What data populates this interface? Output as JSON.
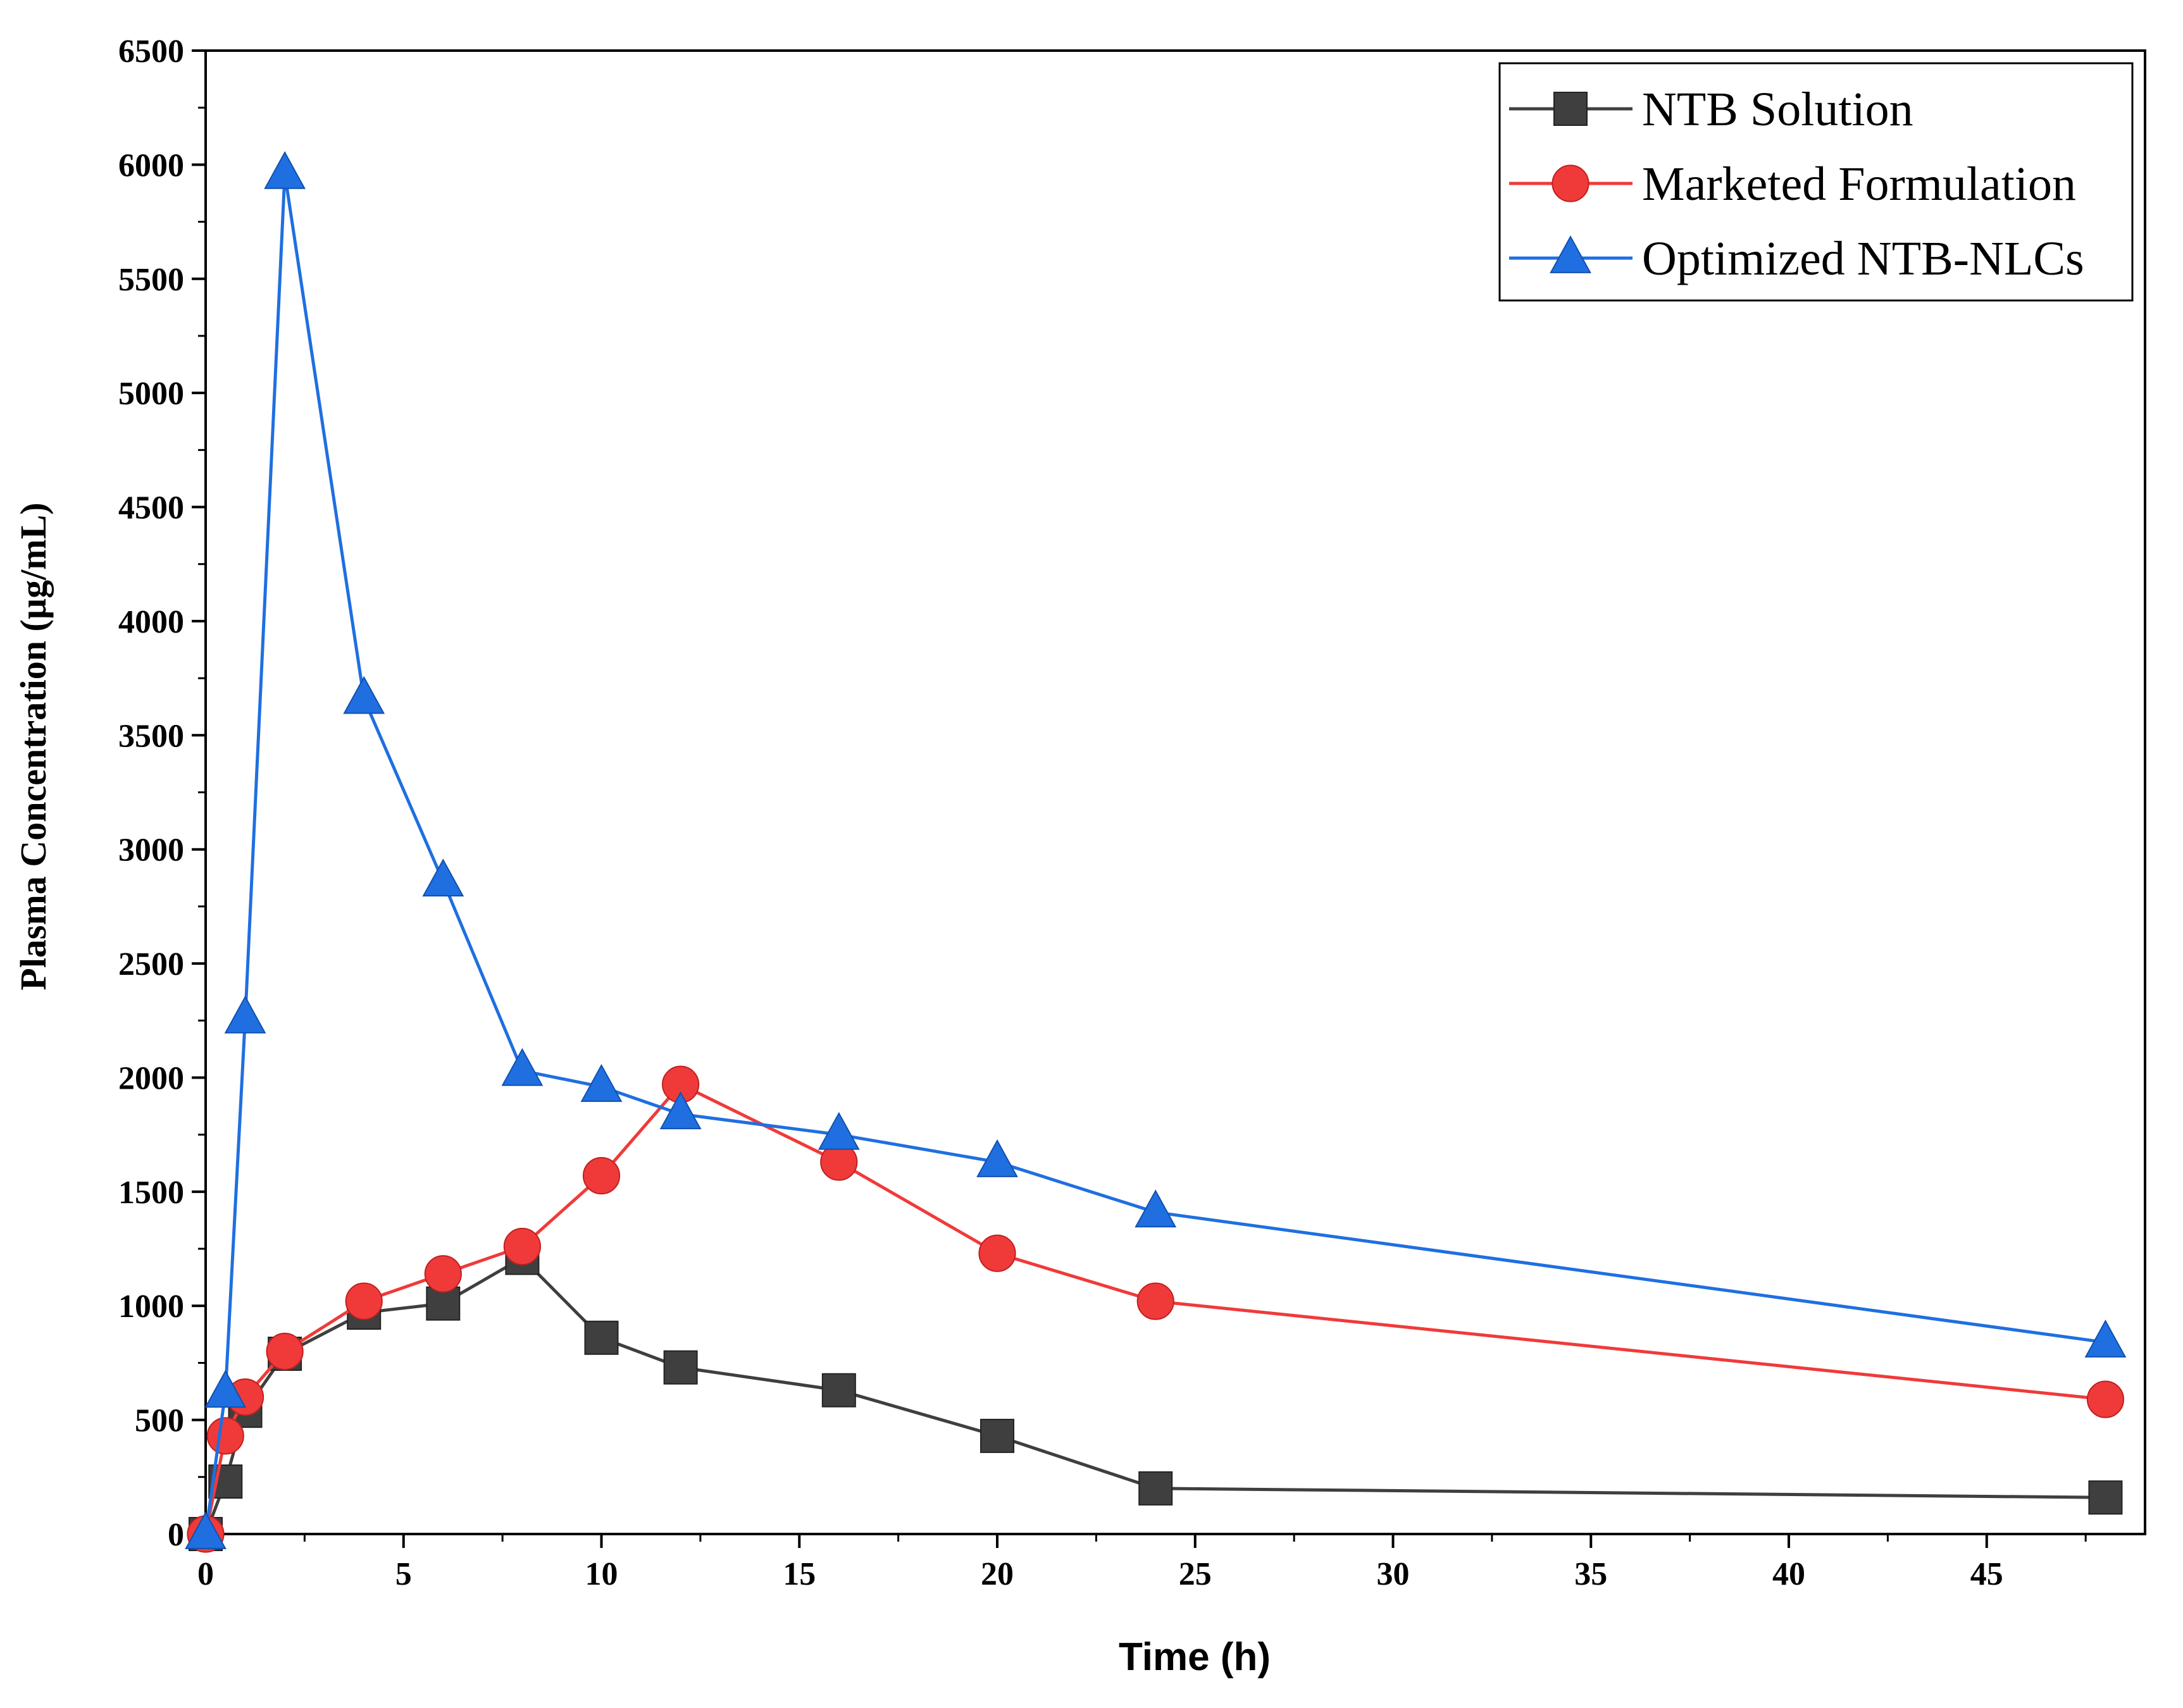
{
  "chart_data": {
    "type": "line",
    "title": "",
    "xlabel": "Time (h)",
    "ylabel": "Plasma Concentration (µg/mL)",
    "xlim": [
      0,
      49
    ],
    "ylim": [
      0,
      6500
    ],
    "x_ticks": [
      0,
      5,
      10,
      15,
      20,
      25,
      30,
      35,
      40,
      45
    ],
    "y_ticks": [
      0,
      500,
      1000,
      1500,
      2000,
      2500,
      3000,
      3500,
      4000,
      4500,
      5000,
      5500,
      6000,
      6500
    ],
    "grid": false,
    "legend_position": "top-right",
    "series": [
      {
        "name": "NTB Solution",
        "color": "#3f3f3f",
        "marker": "square",
        "x": [
          0,
          0.5,
          1,
          2,
          4,
          6,
          8,
          10,
          12,
          16,
          20,
          24,
          48
        ],
        "y": [
          0,
          230,
          540,
          790,
          970,
          1010,
          1210,
          860,
          730,
          630,
          430,
          200,
          160
        ]
      },
      {
        "name": "Marketed Formulation",
        "color": "#f03a3a",
        "marker": "circle",
        "x": [
          0,
          0.5,
          1,
          2,
          4,
          6,
          8,
          10,
          12,
          16,
          20,
          24,
          48
        ],
        "y": [
          0,
          430,
          600,
          800,
          1020,
          1140,
          1260,
          1570,
          1970,
          1630,
          1230,
          1020,
          590
        ]
      },
      {
        "name": "Optimized NTB-NLCs",
        "color": "#1f6fe0",
        "marker": "triangle",
        "x": [
          0,
          0.5,
          1,
          2,
          4,
          6,
          8,
          10,
          12,
          16,
          20,
          24,
          48
        ],
        "y": [
          0,
          620,
          2260,
          5960,
          3660,
          2860,
          2030,
          1960,
          1840,
          1750,
          1630,
          1410,
          840
        ]
      }
    ]
  }
}
